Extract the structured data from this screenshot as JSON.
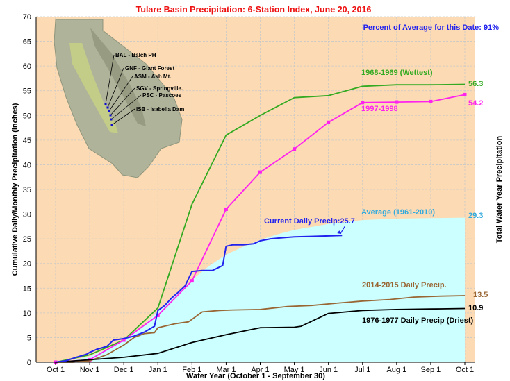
{
  "chart_data": {
    "type": "line",
    "title": "Tulare Basin Precipitation: 6-Station Index, June 20, 2016",
    "subtitle": "Percent of Average for this Date: 91%",
    "xlabel": "Water Year (October 1 - September 30)",
    "ylabel": "Cumulative Daily/Monthly Precipitation (inches)",
    "ylabel_right": "Total Water Year Precipitation",
    "x_ticks": [
      "Oct 1",
      "Nov 1",
      "Dec 1",
      "Jan 1",
      "Feb 1",
      "Mar 1",
      "Apr 1",
      "May 1",
      "Jun 1",
      "Jul 1",
      "Aug 1",
      "Sep 1",
      "Oct 1"
    ],
    "ylim": [
      0,
      70
    ],
    "y_ticks": [
      "0",
      "5",
      "10",
      "15",
      "20",
      "25",
      "30",
      "35",
      "40",
      "45",
      "50",
      "55",
      "60",
      "65",
      "70"
    ],
    "grid": true,
    "x_units": "months since Oct 1",
    "series": [
      {
        "name": "Average (1961-2010)",
        "style": "area",
        "color": "#ccffff",
        "label_color": "#33aadd",
        "end_label": "29.3",
        "x": [
          0,
          0.5,
          1,
          1.5,
          2,
          2.5,
          3,
          3.5,
          4,
          4.5,
          5,
          5.5,
          6,
          6.5,
          7,
          8,
          9,
          10,
          11,
          12
        ],
        "values": [
          0,
          0.4,
          1.2,
          2.6,
          4.5,
          7,
          10.3,
          13.5,
          16.7,
          19.5,
          21.8,
          23.4,
          24.8,
          25.9,
          26.8,
          28,
          28.8,
          29.1,
          29.2,
          29.3
        ]
      },
      {
        "name": "1968-1969 (Wettest)",
        "color": "#33aa22",
        "end_label": "56.3",
        "x": [
          0,
          1,
          2,
          3,
          4,
          5,
          6,
          7,
          8,
          9,
          10,
          11,
          12
        ],
        "values": [
          0,
          1.5,
          4.5,
          11,
          32,
          46,
          50,
          53.6,
          54,
          55.9,
          56.2,
          56.2,
          56.3
        ]
      },
      {
        "name": "1997-1998",
        "color": "#ff22ee",
        "end_label": "54.2",
        "x": [
          0,
          1,
          2,
          3,
          4,
          5,
          6,
          7,
          8,
          9,
          10,
          11,
          12
        ],
        "values": [
          0,
          0.5,
          4.5,
          9.5,
          16.5,
          31,
          38.5,
          43.2,
          48.6,
          52.6,
          52.7,
          52.8,
          54.2
        ]
      },
      {
        "name": "2014-2015 Daily Precip.",
        "color": "#996633",
        "end_label": "13.5",
        "x": [
          0,
          0.5,
          1,
          1.5,
          2,
          2.3,
          2.6,
          2.9,
          3,
          3.5,
          3.9,
          4.3,
          4.8,
          5.2,
          6,
          6.8,
          7.5,
          8.3,
          9,
          9.8,
          10.5,
          11.3,
          12
        ],
        "values": [
          0,
          0,
          0.3,
          1.5,
          3.5,
          5,
          5.8,
          6,
          7,
          7.8,
          8.2,
          10.2,
          10.5,
          10.6,
          10.7,
          11.3,
          11.5,
          12,
          12.4,
          12.7,
          13.2,
          13.4,
          13.5
        ]
      },
      {
        "name": "1976-1977 Daily Precip (Driest)",
        "color": "#000000",
        "end_label": "10.9",
        "x": [
          0,
          1,
          2,
          3,
          4,
          5,
          6,
          7,
          7.2,
          8,
          9,
          10,
          11,
          12
        ],
        "values": [
          0,
          0.5,
          1,
          1.8,
          4,
          5.6,
          7,
          7.1,
          7.3,
          9.9,
          10.5,
          10.7,
          10.8,
          10.9
        ]
      },
      {
        "name": "Current Daily Precip:25.7",
        "color": "#2222ee",
        "x": [
          0,
          0.3,
          0.6,
          0.9,
          1,
          1.2,
          1.5,
          1.7,
          2,
          2.3,
          2.6,
          2.9,
          3,
          3.2,
          3.4,
          3.6,
          3.8,
          4,
          4.3,
          4.6,
          4.9,
          5,
          5.2,
          5.5,
          5.8,
          6,
          6.3,
          6.6,
          7,
          7.5,
          8,
          8.4
        ],
        "values": [
          0,
          0.3,
          1,
          1.6,
          2,
          2.6,
          3.2,
          4.5,
          4.8,
          5.3,
          6.1,
          7.3,
          10.5,
          11.5,
          13,
          14.2,
          15.5,
          18.4,
          18.6,
          18.6,
          19.6,
          23.5,
          23.8,
          23.8,
          24,
          24.6,
          25,
          25.2,
          25.4,
          25.5,
          25.6,
          25.7
        ]
      }
    ]
  },
  "map": {
    "labels": [
      "BAL - Balch PH",
      "GNF - Giant Forest",
      "ASM - Ash Mt.",
      "SGV - Springville.",
      "PSC - Pascoes",
      "ISB - Isabella Dam"
    ]
  }
}
